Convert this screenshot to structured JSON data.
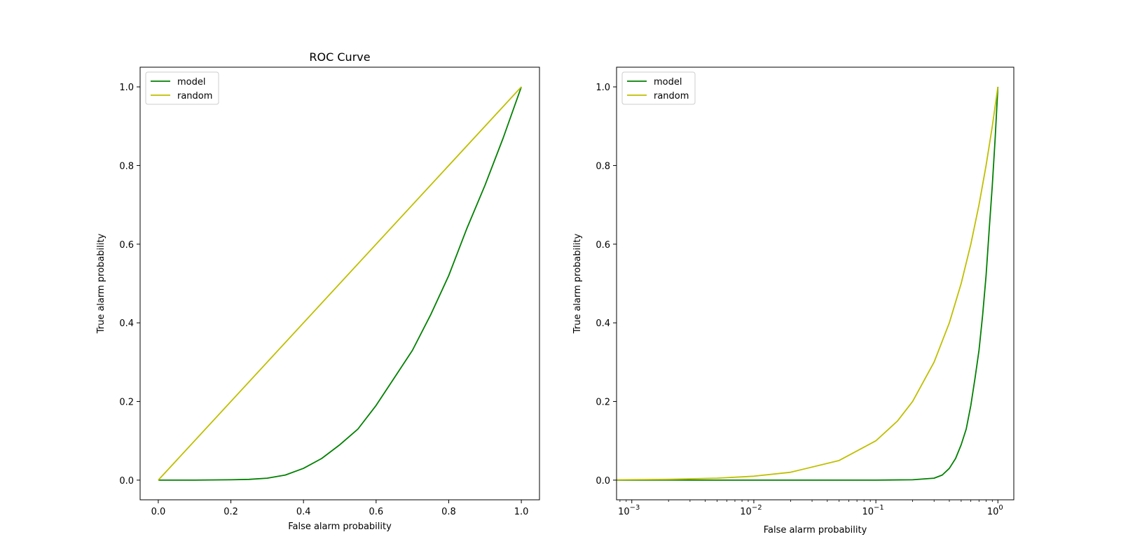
{
  "chart_data": [
    {
      "type": "line",
      "title": "ROC Curve",
      "xlabel": "False alarm probability",
      "ylabel": "True alarm probability",
      "xscale": "linear",
      "xlim": [
        -0.05,
        1.05
      ],
      "ylim": [
        -0.05,
        1.05
      ],
      "xticks": [
        0.0,
        0.2,
        0.4,
        0.6,
        0.8,
        1.0
      ],
      "xtick_labels": [
        "0.0",
        "0.2",
        "0.4",
        "0.6",
        "0.8",
        "1.0"
      ],
      "yticks": [
        0.0,
        0.2,
        0.4,
        0.6,
        0.8,
        1.0
      ],
      "ytick_labels": [
        "0.0",
        "0.2",
        "0.4",
        "0.6",
        "0.8",
        "1.0"
      ],
      "grid": false,
      "legend_position": "top-left",
      "series": [
        {
          "name": "model",
          "color": "#008000",
          "x": [
            0.0,
            0.1,
            0.2,
            0.25,
            0.3,
            0.35,
            0.4,
            0.45,
            0.5,
            0.55,
            0.6,
            0.65,
            0.7,
            0.75,
            0.8,
            0.85,
            0.9,
            0.95,
            1.0
          ],
          "y": [
            0.0,
            0.0,
            0.001,
            0.002,
            0.005,
            0.013,
            0.03,
            0.055,
            0.09,
            0.13,
            0.19,
            0.26,
            0.33,
            0.42,
            0.52,
            0.64,
            0.75,
            0.87,
            1.0
          ]
        },
        {
          "name": "random",
          "color": "#bfbf00",
          "x": [
            0.0,
            1.0
          ],
          "y": [
            0.0,
            1.0
          ]
        }
      ]
    },
    {
      "type": "line",
      "title": "",
      "xlabel": "False alarm probability",
      "ylabel": "True alarm probability",
      "xscale": "log",
      "xlim": [
        0.00075,
        1.35
      ],
      "ylim": [
        -0.05,
        1.05
      ],
      "xticks": [
        0.001,
        0.01,
        0.1,
        1
      ],
      "xtick_labels": [
        "10",
        "10",
        "10",
        "10"
      ],
      "xtick_exponents": [
        "−3",
        "−2",
        "−1",
        "0"
      ],
      "yticks": [
        0.0,
        0.2,
        0.4,
        0.6,
        0.8,
        1.0
      ],
      "ytick_labels": [
        "0.0",
        "0.2",
        "0.4",
        "0.6",
        "0.8",
        "1.0"
      ],
      "grid": false,
      "legend_position": "top-left",
      "series": [
        {
          "name": "model",
          "color": "#008000",
          "x": [
            0.00075,
            0.01,
            0.1,
            0.2,
            0.3,
            0.35,
            0.4,
            0.45,
            0.5,
            0.55,
            0.6,
            0.65,
            0.7,
            0.75,
            0.8,
            0.85,
            0.9,
            0.95,
            1.0
          ],
          "y": [
            0.0,
            0.0,
            0.0,
            0.001,
            0.005,
            0.013,
            0.03,
            0.055,
            0.09,
            0.13,
            0.19,
            0.26,
            0.33,
            0.42,
            0.52,
            0.64,
            0.75,
            0.87,
            1.0
          ]
        },
        {
          "name": "random",
          "color": "#bfbf00",
          "x": [
            0.00075,
            0.002,
            0.005,
            0.01,
            0.02,
            0.05,
            0.1,
            0.15,
            0.2,
            0.3,
            0.4,
            0.5,
            0.6,
            0.7,
            0.8,
            0.9,
            1.0
          ],
          "y": [
            0.00075,
            0.002,
            0.005,
            0.01,
            0.02,
            0.05,
            0.1,
            0.15,
            0.2,
            0.3,
            0.4,
            0.5,
            0.6,
            0.7,
            0.8,
            0.9,
            1.0
          ]
        }
      ]
    }
  ]
}
